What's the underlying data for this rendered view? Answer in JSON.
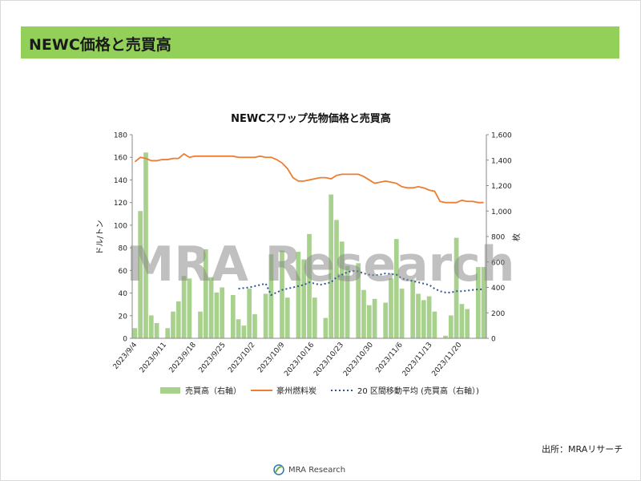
{
  "header": {
    "title": "NEWC価格と売買高"
  },
  "source": "出所：MRAリサーチ",
  "logo": {
    "text": "MRA Research"
  },
  "watermark": "MRA Research",
  "colors": {
    "header_bg": "#92d05a",
    "bar": "#a9d18e",
    "line": "#ed7d31",
    "moving_avg": "#2f5597"
  },
  "chart_data": {
    "type": "bar",
    "title": "NEWCスワップ先物価格と売買高",
    "ylabel": "ドル/トン",
    "y2label": "枚",
    "ylim": [
      0,
      180
    ],
    "yticks": [
      0,
      20,
      40,
      60,
      80,
      100,
      120,
      140,
      160,
      180
    ],
    "y2lim": [
      0,
      1600
    ],
    "y2ticks": [
      "0",
      "200",
      "400",
      "600",
      "800",
      "1,000",
      "1,200",
      "1,400",
      "1,600"
    ],
    "x_tick_labels": [
      "2023/9/4",
      "2023/9/11",
      "2023/9/18",
      "2023/9/25",
      "2023/10/2",
      "2023/10/9",
      "2023/10/16",
      "2023/10/23",
      "2023/10/30",
      "2023/11/6",
      "2023/11/13",
      "2023/11/20"
    ],
    "grid": false,
    "legend_position": "bottom",
    "series": [
      {
        "name": "売買高（右軸）",
        "type": "bar",
        "axis": "right",
        "values": [
          80,
          1000,
          1460,
          180,
          120,
          0,
          80,
          210,
          290,
          490,
          470,
          0,
          210,
          700,
          480,
          360,
          400,
          0,
          340,
          150,
          100,
          390,
          190,
          0,
          350,
          660,
          0,
          690,
          320,
          0,
          680,
          620,
          820,
          320,
          0,
          160,
          1130,
          930,
          760,
          570,
          0,
          590,
          380,
          260,
          310,
          0,
          280,
          470,
          780,
          390,
          0,
          460,
          350,
          300,
          330,
          210,
          0,
          20,
          180,
          790,
          270,
          230,
          0,
          560,
          560
        ]
      },
      {
        "name": "豪州燃料炭",
        "type": "line",
        "axis": "left",
        "values": [
          156,
          160,
          159,
          157,
          157,
          158,
          158,
          159,
          159,
          163,
          160,
          161,
          161,
          161,
          161,
          161,
          161,
          161,
          161,
          160,
          160,
          160,
          160,
          161,
          160,
          160,
          158,
          155,
          150,
          142,
          139,
          139,
          140,
          141,
          142,
          142,
          141,
          144,
          145,
          145,
          145,
          145,
          143,
          140,
          137,
          138,
          139,
          138,
          137,
          134,
          133,
          133,
          134,
          133,
          131,
          130,
          121,
          120,
          120,
          120,
          122,
          121,
          121,
          120,
          120
        ]
      },
      {
        "name": "20 区間移動平均 (売買高（右軸）)",
        "type": "line",
        "axis": "right",
        "start_index": 19,
        "values": [
          390,
          395,
          400,
          410,
          420,
          430,
          340,
          360,
          380,
          390,
          400,
          410,
          420,
          440,
          430,
          420,
          430,
          440,
          480,
          500,
          520,
          530,
          525,
          510,
          500,
          495,
          500,
          510,
          505,
          500,
          470,
          460,
          450,
          440,
          430,
          420,
          390,
          370,
          360,
          360,
          370,
          370,
          375,
          380,
          385,
          385
        ]
      }
    ]
  }
}
